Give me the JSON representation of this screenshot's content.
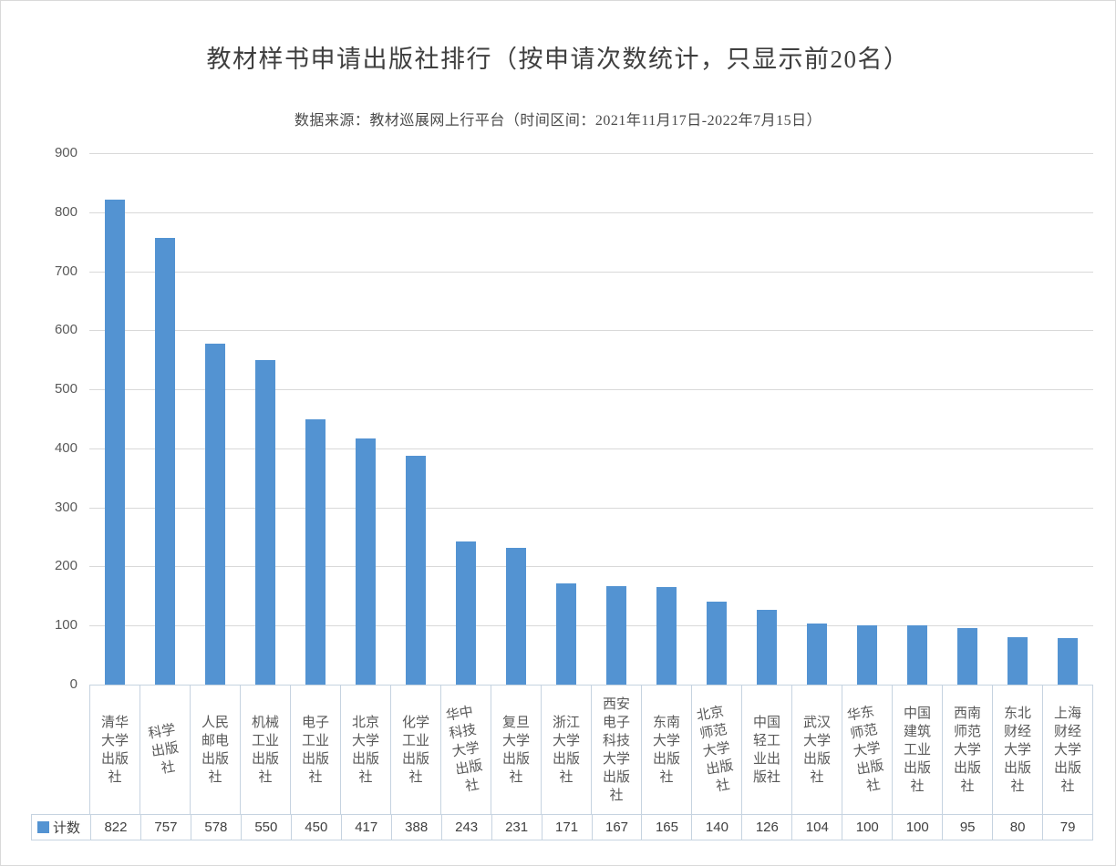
{
  "chart": {
    "title": "教材样书申请出版社排行（按申请次数统计，只显示前20名）",
    "subtitle": "数据来源：教材巡展网上行平台（时间区间：2021年11月17日-2022年7月15日）"
  },
  "chart_data": {
    "type": "bar",
    "title": "教材样书申请出版社排行（按申请次数统计，只显示前20名）",
    "subtitle": "数据来源：教材巡展网上行平台（时间区间：2021年11月17日-2022年7月15日）",
    "series_name": "计数",
    "categories": [
      "清华大学出版社",
      "科学出版社",
      "人民邮电出版社",
      "机械工业出版社",
      "电子工业出版社",
      "北京大学出版社",
      "化学工业出版社",
      "华中科技大学出版社",
      "复旦大学出版社",
      "浙江大学出版社",
      "西安电子科技大学出版社",
      "东南大学出版社",
      "北京师范大学出版社",
      "中国轻工业出版社",
      "武汉大学出版社",
      "华东师范大学出版社",
      "中国建筑工业出版社",
      "西南师范大学出版社",
      "东北财经大学出版社",
      "上海财经大学出版社"
    ],
    "values": [
      822,
      757,
      578,
      550,
      450,
      417,
      388,
      243,
      231,
      171,
      167,
      165,
      140,
      126,
      104,
      100,
      100,
      95,
      80,
      79
    ],
    "tilted_category_indexes": [
      1,
      7,
      12,
      15
    ],
    "ylim": [
      0,
      900
    ],
    "ytick_interval": 100,
    "yticks": [
      900,
      800,
      700,
      600,
      500,
      400,
      300,
      200,
      100,
      0
    ],
    "grid": true,
    "legend_position": "data-table-left",
    "colors": {
      "bar": "#5393D2",
      "gridline": "#D9D9D9",
      "table_border": "#C6D3E0",
      "title_text": "#3F3F3F",
      "axis_text": "#595959",
      "value_text": "#404040"
    }
  }
}
